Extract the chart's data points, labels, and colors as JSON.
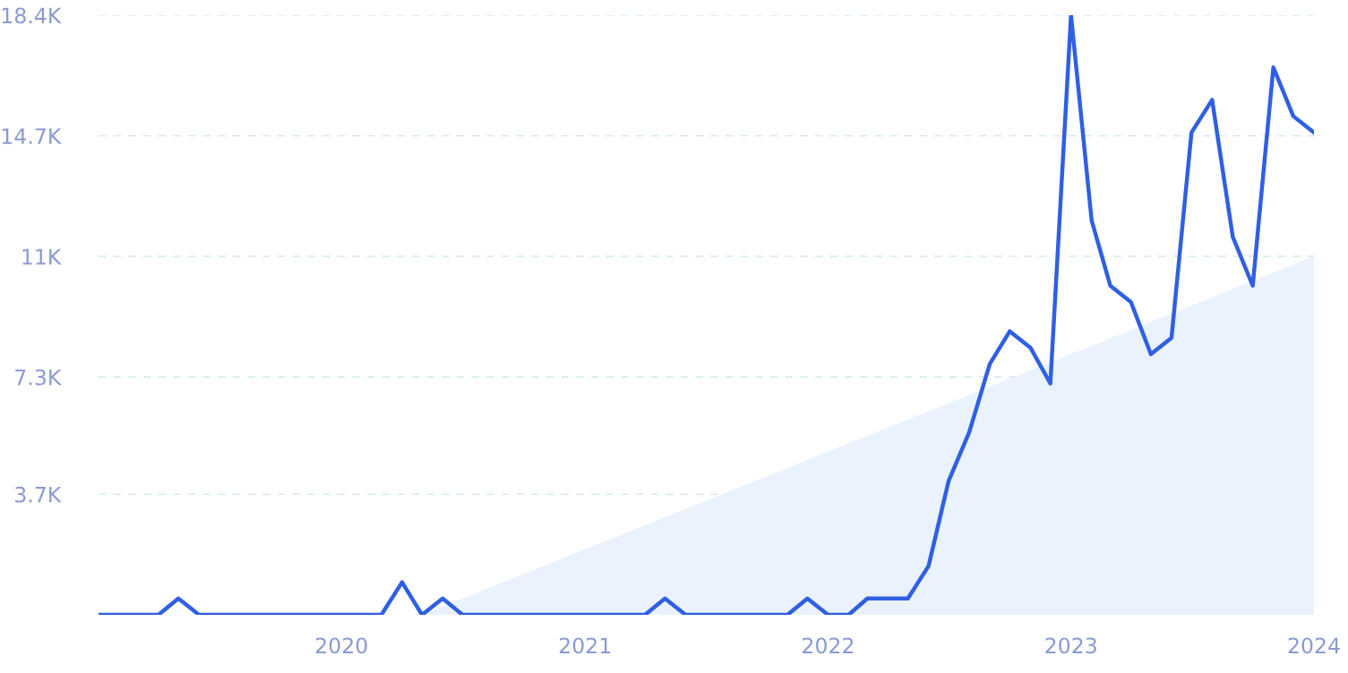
{
  "chart_data": {
    "type": "line",
    "x": [
      "2019-01",
      "2019-02",
      "2019-03",
      "2019-04",
      "2019-05",
      "2019-06",
      "2019-07",
      "2019-08",
      "2019-09",
      "2019-10",
      "2019-11",
      "2019-12",
      "2020-01",
      "2020-02",
      "2020-03",
      "2020-04",
      "2020-05",
      "2020-06",
      "2020-07",
      "2020-08",
      "2020-09",
      "2020-10",
      "2020-11",
      "2020-12",
      "2021-01",
      "2021-02",
      "2021-03",
      "2021-04",
      "2021-05",
      "2021-06",
      "2021-07",
      "2021-08",
      "2021-09",
      "2021-10",
      "2021-11",
      "2021-12",
      "2022-01",
      "2022-02",
      "2022-03",
      "2022-04",
      "2022-05",
      "2022-06",
      "2022-07",
      "2022-08",
      "2022-09",
      "2022-10",
      "2022-11",
      "2022-12",
      "2023-01",
      "2023-02",
      "2023-03",
      "2023-04",
      "2023-05",
      "2023-06",
      "2023-07",
      "2023-08",
      "2023-09",
      "2023-10",
      "2023-11",
      "2023-12",
      "2024-01"
    ],
    "series": [
      {
        "type": "area",
        "color": "#eaf2fd",
        "x": [
          "2020-05",
          "2024-01"
        ],
        "values": [
          0,
          11000
        ]
      },
      {
        "color": "#2f5fe3",
        "values": [
          0,
          0,
          0,
          0,
          500,
          0,
          0,
          0,
          0,
          0,
          0,
          0,
          0,
          0,
          0,
          1000,
          0,
          500,
          0,
          0,
          0,
          0,
          0,
          0,
          0,
          0,
          0,
          0,
          500,
          0,
          0,
          0,
          0,
          0,
          0,
          500,
          0,
          0,
          500,
          500,
          500,
          1500,
          4100,
          5600,
          7700,
          8700,
          8200,
          7100,
          18400,
          12100,
          10100,
          9600,
          8000,
          8500,
          14800,
          15800,
          11600,
          10100,
          16800,
          15300,
          14800
        ]
      }
    ],
    "xlim": [
      "2019-01",
      "2024-01"
    ],
    "xticks": [
      {
        "value": "2020-01",
        "label": "2020"
      },
      {
        "value": "2021-01",
        "label": "2021"
      },
      {
        "value": "2022-01",
        "label": "2022"
      },
      {
        "value": "2023-01",
        "label": "2023"
      },
      {
        "value": "2024-01",
        "label": "2024"
      }
    ],
    "ylim": [
      0,
      18400
    ],
    "yticks": [
      {
        "value": 3700,
        "label": "3.7K"
      },
      {
        "value": 7300,
        "label": "7.3K"
      },
      {
        "value": 11000,
        "label": "11K"
      },
      {
        "value": 14700,
        "label": "14.7K"
      },
      {
        "value": 18400,
        "label": "18.4K"
      }
    ],
    "grid": "y",
    "line_style": "solid",
    "marker": "none",
    "legend": false
  }
}
